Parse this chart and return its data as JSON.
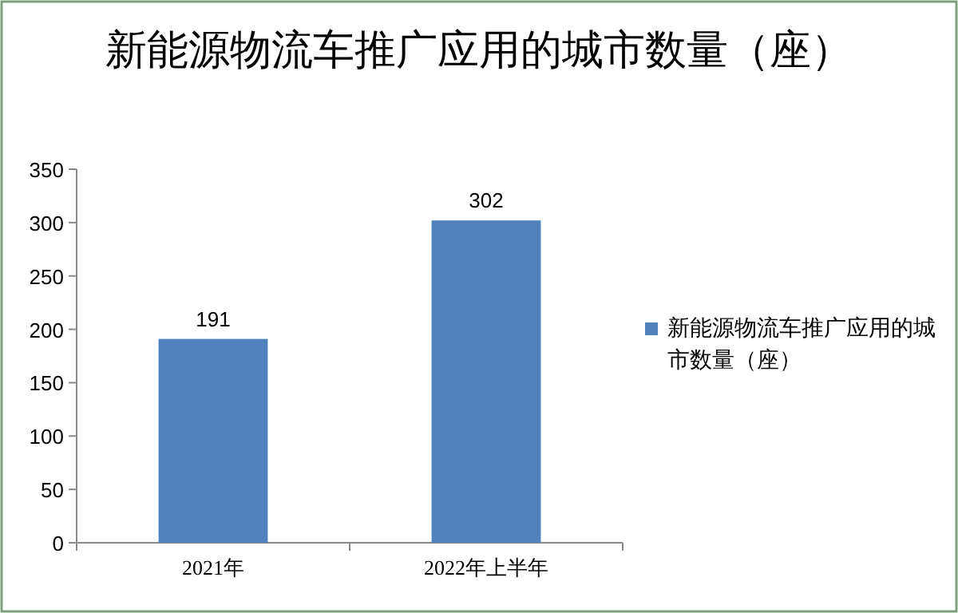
{
  "chart_data": {
    "type": "bar",
    "title": "新能源物流车推广应用的城市数量（座）",
    "categories": [
      "2021年",
      "2022年上半年"
    ],
    "series": [
      {
        "name": "新能源物流车推广应用的城市数量（座）",
        "color": "#4f81bd",
        "values": [
          191,
          302
        ]
      }
    ],
    "ylim": [
      0,
      350
    ],
    "yticks": [
      0,
      50,
      100,
      150,
      200,
      250,
      300,
      350
    ],
    "data_labels": true,
    "legend": "right",
    "grid": false
  }
}
